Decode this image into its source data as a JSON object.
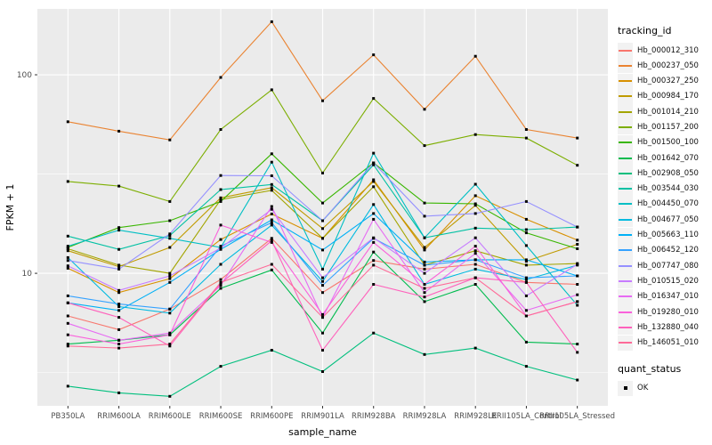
{
  "chart_data": {
    "type": "line",
    "title": "",
    "xlabel": "sample_name",
    "ylabel": "FPKM + 1",
    "y_scale": "log10",
    "y_ticks": [
      10,
      100
    ],
    "y_minor_ticks": [
      3.162,
      31.62
    ],
    "ylim": [
      2.15,
      214.7
    ],
    "grid": true,
    "panel_bg": "#EBEBEB",
    "grid_color": "#FFFFFF",
    "tick_label_color": "#4D4D4D",
    "marker": "black-square",
    "legend_title": "tracking_id",
    "legend_position": "right",
    "quant_status": {
      "title": "quant_status",
      "items": [
        "OK"
      ]
    },
    "categories": [
      "PB350LA",
      "RRIM600LA",
      "RRIM600LE",
      "RRIM600SE",
      "RRIM600PE",
      "RRIM901LA",
      "RRIM928BA",
      "RRIM928LA",
      "RRIM928LE",
      "RRII105LA_Control",
      "RRII105LA_Stressed"
    ],
    "series": [
      {
        "name": "Hb_000012_310",
        "color": "#F8766D",
        "values": [
          6.1,
          5.2,
          6.6,
          9.3,
          15.0,
          8.0,
          11.6,
          10.5,
          11.1,
          9.0,
          8.8
        ]
      },
      {
        "name": "Hb_000237_050",
        "color": "#EA8331",
        "values": [
          58,
          52,
          47,
          97,
          185,
          74,
          126,
          67,
          124,
          53,
          48
        ]
      },
      {
        "name": "Hb_000327_250",
        "color": "#D89000",
        "values": [
          10.6,
          8.0,
          9.4,
          14.8,
          19.9,
          15.0,
          29.6,
          13.1,
          24.6,
          18.7,
          14.7
        ]
      },
      {
        "name": "Hb_000984_170",
        "color": "#C09B00",
        "values": [
          13.0,
          10.8,
          13.5,
          24.0,
          27.0,
          16.8,
          29.0,
          13.5,
          22.0,
          11.5,
          14.0
        ]
      },
      {
        "name": "Hb_001014_210",
        "color": "#A3A500",
        "values": [
          13.3,
          11.0,
          10.0,
          23.5,
          26.2,
          15.0,
          27.3,
          11.0,
          13.0,
          11.0,
          11.2
        ]
      },
      {
        "name": "Hb_001157_200",
        "color": "#7CAE00",
        "values": [
          29,
          27.5,
          23,
          53,
          84,
          32,
          76,
          44,
          50,
          48,
          35
        ]
      },
      {
        "name": "Hb_001500_100",
        "color": "#39B600",
        "values": [
          13.5,
          17.0,
          18.4,
          23.0,
          40.0,
          22.6,
          36.0,
          22.6,
          22.4,
          16.0,
          13.3
        ]
      },
      {
        "name": "Hb_001642_070",
        "color": "#00BB4E",
        "values": [
          4.4,
          4.6,
          4.9,
          8.4,
          10.4,
          5.0,
          12.8,
          7.2,
          8.8,
          4.5,
          4.4
        ]
      },
      {
        "name": "Hb_002908_050",
        "color": "#00BF7D",
        "values": [
          2.7,
          2.5,
          2.4,
          3.4,
          4.1,
          3.2,
          5.0,
          3.9,
          4.2,
          3.4,
          2.9
        ]
      },
      {
        "name": "Hb_003544_030",
        "color": "#00C1A3",
        "values": [
          15.4,
          13.2,
          15.5,
          26.4,
          28.0,
          18.4,
          35.2,
          15.1,
          16.9,
          16.6,
          17.1
        ]
      },
      {
        "name": "Hb_004450_070",
        "color": "#00BFC4",
        "values": [
          13.7,
          16.5,
          15.0,
          13.5,
          36.3,
          10.5,
          40.3,
          15.1,
          28.1,
          13.8,
          6.9
        ]
      },
      {
        "name": "Hb_004677_050",
        "color": "#00BAE0",
        "values": [
          12.0,
          6.8,
          6.3,
          11.1,
          17.5,
          9.1,
          22.2,
          8.8,
          10.5,
          9.3,
          11.0
        ]
      },
      {
        "name": "Hb_005663_110",
        "color": "#00B0F6",
        "values": [
          7.1,
          6.5,
          9.0,
          13.2,
          18.6,
          13.1,
          20.0,
          11.4,
          11.7,
          11.7,
          9.7
        ]
      },
      {
        "name": "Hb_006452_120",
        "color": "#35A2FF",
        "values": [
          7.7,
          7.0,
          6.6,
          13.7,
          18.0,
          8.7,
          15.0,
          11.0,
          11.7,
          9.5,
          9.7
        ]
      },
      {
        "name": "Hb_007747_080",
        "color": "#9590FF",
        "values": [
          11.6,
          10.5,
          15.8,
          31.1,
          31.0,
          18.4,
          36.0,
          19.4,
          20.0,
          23.0,
          17.1
        ]
      },
      {
        "name": "Hb_010515_020",
        "color": "#C77CFF",
        "values": [
          10.9,
          8.2,
          9.7,
          13.4,
          21.0,
          9.5,
          15.1,
          10.0,
          15.1,
          7.7,
          11.1
        ]
      },
      {
        "name": "Hb_016347_010",
        "color": "#E76BF3",
        "values": [
          5.6,
          4.6,
          5.0,
          8.7,
          21.7,
          6.0,
          18.7,
          8.0,
          12.6,
          6.5,
          7.8
        ]
      },
      {
        "name": "Hb_019280_010",
        "color": "#FA62DB",
        "values": [
          4.9,
          4.4,
          4.9,
          17.5,
          14.3,
          6.2,
          14.3,
          8.8,
          13.7,
          6.1,
          7.2
        ]
      },
      {
        "name": "Hb_132880_040",
        "color": "#FF62BC",
        "values": [
          7.1,
          6.0,
          4.3,
          8.9,
          14.6,
          4.1,
          8.8,
          7.6,
          9.5,
          9.0,
          4.0
        ]
      },
      {
        "name": "Hb_146051_010",
        "color": "#FF6A98",
        "values": [
          4.3,
          4.2,
          4.4,
          9.0,
          11.1,
          6.0,
          11.0,
          8.4,
          9.5,
          6.1,
          7.2
        ]
      }
    ]
  }
}
